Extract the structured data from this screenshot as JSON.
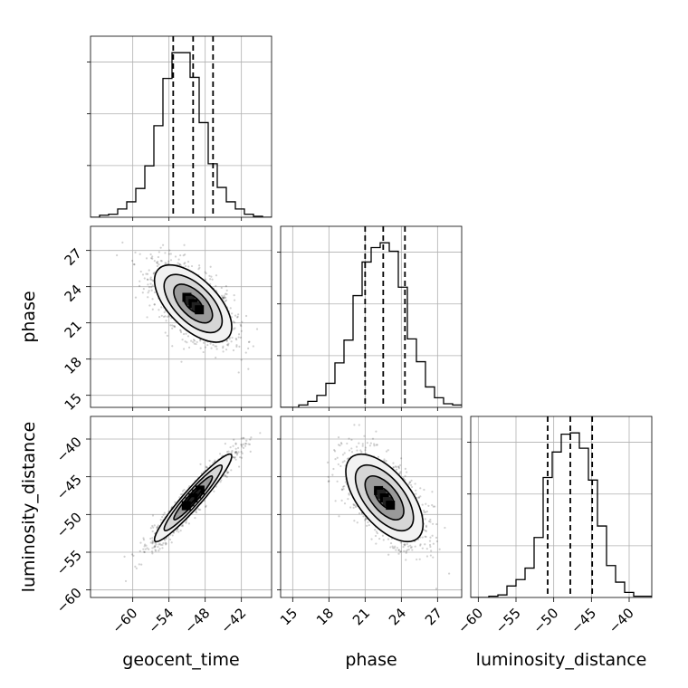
{
  "chart_data": {
    "type": "corner",
    "parameters": [
      "geocent_time",
      "phase",
      "luminosity_distance"
    ],
    "axis_labels": {
      "geocent_time": "geocent_time",
      "phase": "phase",
      "luminosity_distance": "luminosity_distance"
    },
    "ranges": {
      "geocent_time": [
        -67,
        -37
      ],
      "phase": [
        14,
        29
      ],
      "luminosity_distance": [
        -61,
        -37
      ]
    },
    "ticks": {
      "geocent_time": [
        -60,
        -54,
        -48,
        -42
      ],
      "phase": [
        15,
        18,
        21,
        24,
        27
      ],
      "luminosity_distance": [
        -60,
        -55,
        -50,
        -45,
        -40
      ]
    },
    "tick_labels": {
      "geocent_time": [
        "−60",
        "−54",
        "−48",
        "−42"
      ],
      "phase": [
        "15",
        "18",
        "21",
        "24",
        "27"
      ],
      "luminosity_distance": [
        "−60",
        "−55",
        "−50",
        "−45",
        "−40"
      ]
    },
    "quantiles": {
      "geocent_time": [
        -53.3,
        -50.0,
        -46.7
      ],
      "phase": [
        21.0,
        22.5,
        24.3
      ],
      "luminosity_distance": [
        -50.8,
        -47.8,
        -44.9
      ]
    },
    "histograms": {
      "geocent_time": {
        "bins": [
          -67,
          -65.5,
          -64,
          -62.5,
          -61,
          -59.5,
          -58,
          -56.5,
          -55,
          -53.5,
          -52,
          -50.5,
          -49,
          -47.5,
          -46,
          -44.5,
          -43,
          -41.5,
          -40,
          -38.5,
          -37
        ],
        "counts": [
          0,
          2,
          3,
          8,
          15,
          28,
          50,
          89,
          135,
          160,
          160,
          136,
          92,
          52,
          29,
          15,
          8,
          3,
          1,
          0
        ]
      },
      "phase": {
        "bins": [
          14,
          14.75,
          15.5,
          16.25,
          17,
          17.75,
          18.5,
          19.25,
          20,
          20.75,
          21.5,
          22.25,
          23,
          23.75,
          24.5,
          25.25,
          26,
          26.75,
          27.5,
          28.25,
          29
        ],
        "counts": [
          0,
          0,
          2,
          5,
          10,
          20,
          37,
          56,
          93,
          121,
          133,
          137,
          130,
          100,
          57,
          38,
          17,
          8,
          3,
          2
        ]
      },
      "luminosity_distance": {
        "bins": [
          -61,
          -59.8,
          -58.6,
          -57.4,
          -56.2,
          -55,
          -53.8,
          -52.6,
          -51.4,
          -50.2,
          -49,
          -47.8,
          -46.6,
          -45.4,
          -44.2,
          -43,
          -41.8,
          -40.6,
          -39.4,
          -38.2,
          -37
        ],
        "counts": [
          0,
          0,
          1,
          2,
          9,
          14,
          23,
          47,
          94,
          114,
          128,
          129,
          117,
          92,
          56,
          25,
          12,
          4,
          1,
          1
        ]
      }
    },
    "correlations": {
      "geocent_time|phase": -0.6,
      "geocent_time|luminosity_distance": 0.95,
      "phase|luminosity_distance": -0.6
    },
    "sigmas": {
      "geocent_time": 3.2,
      "phase": 1.6,
      "luminosity_distance": 2.9
    },
    "means": {
      "geocent_time": -50.0,
      "phase": 22.6,
      "luminosity_distance": -47.8
    },
    "contour_levels_sigma": [
      0.5,
      1.0,
      1.5,
      2.0
    ],
    "grid": true,
    "quantile_line_style": "dashed"
  }
}
